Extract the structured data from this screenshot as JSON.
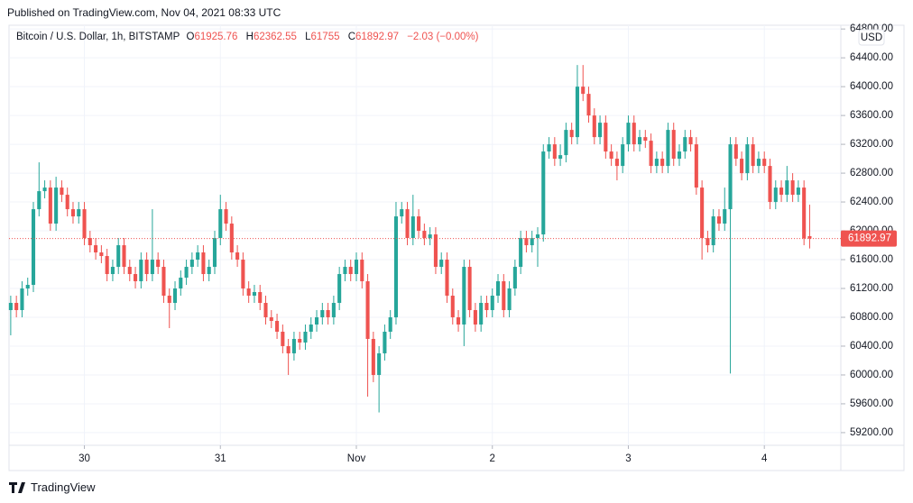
{
  "published": "Published on TradingView.com, Nov 04, 2021 08:33 UTC",
  "brand": "TradingView",
  "chart_data": {
    "type": "candlestick",
    "title": "Bitcoin / U.S. Dollar, 1h, BITSTAMP",
    "legend_labels": [
      "O",
      "H",
      "L",
      "C"
    ],
    "change": "−2.03 (−0.00%)",
    "currency": "USD",
    "up_color": "#26a69a",
    "down_color": "#ef5350",
    "grid": true,
    "xlim": [
      -0.3,
      146.5
    ],
    "xticks": [
      {
        "value": 13,
        "label": "30"
      },
      {
        "value": 37,
        "label": "31"
      },
      {
        "value": 61,
        "label": "Nov"
      },
      {
        "value": 85,
        "label": "2"
      },
      {
        "value": 109,
        "label": "3"
      },
      {
        "value": 133,
        "label": "4"
      }
    ],
    "ylim": [
      59024,
      64852
    ],
    "yticks": [
      {
        "value": 59200,
        "label": "59200.00"
      },
      {
        "value": 59600,
        "label": "59600.00"
      },
      {
        "value": 60000,
        "label": "60000.00"
      },
      {
        "value": 60400,
        "label": "60400.00"
      },
      {
        "value": 60800,
        "label": "60800.00"
      },
      {
        "value": 61200,
        "label": "61200.00"
      },
      {
        "value": 61600,
        "label": "61600.00"
      },
      {
        "value": 62000,
        "label": "62000.00"
      },
      {
        "value": 62400,
        "label": "62400.00"
      },
      {
        "value": 62800,
        "label": "62800.00"
      },
      {
        "value": 63200,
        "label": "63200.00"
      },
      {
        "value": 63600,
        "label": "63600.00"
      },
      {
        "value": 64000,
        "label": "64000.00"
      },
      {
        "value": 64400,
        "label": "64400.00"
      },
      {
        "value": 64800,
        "label": "64800.00"
      }
    ],
    "ohlc": [
      [
        60900,
        61100,
        60550,
        61000
      ],
      [
        61000,
        61100,
        60800,
        60900
      ],
      [
        60900,
        61300,
        60800,
        61200
      ],
      [
        61200,
        61350,
        61100,
        61250
      ],
      [
        61250,
        62400,
        61150,
        62300
      ],
      [
        62300,
        62950,
        62200,
        62550
      ],
      [
        62550,
        62700,
        62450,
        62600
      ],
      [
        62600,
        62700,
        62000,
        62100
      ],
      [
        62100,
        62750,
        62000,
        62600
      ],
      [
        62600,
        62700,
        62400,
        62500
      ],
      [
        62500,
        62600,
        62200,
        62300
      ],
      [
        62300,
        62400,
        62100,
        62200
      ],
      [
        62200,
        62400,
        62100,
        62300
      ],
      [
        62300,
        62400,
        61800,
        61900
      ],
      [
        61900,
        62000,
        61700,
        61800
      ],
      [
        61800,
        61900,
        61600,
        61700
      ],
      [
        61700,
        61800,
        61550,
        61650
      ],
      [
        61650,
        61750,
        61300,
        61400
      ],
      [
        61400,
        61600,
        61300,
        61500
      ],
      [
        61500,
        61900,
        61400,
        61800
      ],
      [
        61800,
        61900,
        61400,
        61500
      ],
      [
        61500,
        61600,
        61300,
        61400
      ],
      [
        61400,
        61500,
        61200,
        61300
      ],
      [
        61300,
        61700,
        61200,
        61600
      ],
      [
        61600,
        61700,
        61300,
        61400
      ],
      [
        61400,
        62300,
        61300,
        61600
      ],
      [
        61600,
        61700,
        61400,
        61500
      ],
      [
        61500,
        61600,
        61000,
        61100
      ],
      [
        61100,
        61200,
        60650,
        61000
      ],
      [
        61000,
        61300,
        60900,
        61200
      ],
      [
        61200,
        61450,
        61100,
        61350
      ],
      [
        61350,
        61600,
        61250,
        61500
      ],
      [
        61500,
        61700,
        61400,
        61600
      ],
      [
        61600,
        61800,
        61500,
        61700
      ],
      [
        61700,
        61800,
        61300,
        61400
      ],
      [
        61400,
        61600,
        61300,
        61500
      ],
      [
        61500,
        62000,
        61400,
        61900
      ],
      [
        61900,
        62500,
        61800,
        62300
      ],
      [
        62300,
        62400,
        62000,
        62100
      ],
      [
        62100,
        62200,
        61600,
        61700
      ],
      [
        61700,
        61800,
        61500,
        61600
      ],
      [
        61600,
        61700,
        61100,
        61200
      ],
      [
        61200,
        61300,
        61000,
        61100
      ],
      [
        61100,
        61250,
        61000,
        61150
      ],
      [
        61150,
        61250,
        60900,
        61000
      ],
      [
        61000,
        61100,
        60700,
        60800
      ],
      [
        60800,
        60900,
        60650,
        60750
      ],
      [
        60750,
        60850,
        60500,
        60600
      ],
      [
        60600,
        60700,
        60300,
        60400
      ],
      [
        60400,
        60500,
        60000,
        60300
      ],
      [
        60300,
        60600,
        60200,
        60500
      ],
      [
        60500,
        60600,
        60350,
        60450
      ],
      [
        60450,
        60700,
        60350,
        60600
      ],
      [
        60600,
        60800,
        60500,
        60700
      ],
      [
        60700,
        60900,
        60600,
        60800
      ],
      [
        60800,
        61000,
        60700,
        60900
      ],
      [
        60900,
        61000,
        60700,
        60800
      ],
      [
        60800,
        61100,
        60700,
        61000
      ],
      [
        61000,
        61500,
        60900,
        61400
      ],
      [
        61400,
        61600,
        61300,
        61500
      ],
      [
        61500,
        61600,
        61300,
        61400
      ],
      [
        61400,
        61700,
        61300,
        61600
      ],
      [
        61600,
        61700,
        61200,
        61300
      ],
      [
        61300,
        61400,
        59700,
        60500
      ],
      [
        60500,
        60600,
        59900,
        60000
      ],
      [
        60000,
        60400,
        59480,
        60300
      ],
      [
        60300,
        60700,
        60200,
        60600
      ],
      [
        60600,
        60900,
        60500,
        60800
      ],
      [
        60800,
        62400,
        60700,
        62200
      ],
      [
        62200,
        62400,
        62100,
        62300
      ],
      [
        62300,
        62400,
        61800,
        61900
      ],
      [
        61900,
        62500,
        61800,
        62200
      ],
      [
        62200,
        62300,
        61900,
        62000
      ],
      [
        62000,
        62100,
        61800,
        61900
      ],
      [
        61900,
        62050,
        61800,
        61950
      ],
      [
        61950,
        62050,
        61400,
        61500
      ],
      [
        61500,
        61700,
        61400,
        61600
      ],
      [
        61600,
        61700,
        61000,
        61100
      ],
      [
        61100,
        61200,
        60700,
        60800
      ],
      [
        60800,
        60900,
        60600,
        60700
      ],
      [
        60700,
        61600,
        60400,
        61500
      ],
      [
        61500,
        61600,
        60800,
        60900
      ],
      [
        60900,
        61000,
        60600,
        60700
      ],
      [
        60700,
        61100,
        60600,
        61000
      ],
      [
        61000,
        61100,
        60800,
        60900
      ],
      [
        60900,
        61200,
        60800,
        61100
      ],
      [
        61100,
        61400,
        61000,
        61300
      ],
      [
        61300,
        61400,
        60800,
        60900
      ],
      [
        60900,
        61300,
        60800,
        61200
      ],
      [
        61200,
        61600,
        61100,
        61500
      ],
      [
        61500,
        62000,
        61400,
        61900
      ],
      [
        61900,
        62000,
        61700,
        61800
      ],
      [
        61800,
        62000,
        61700,
        61900
      ],
      [
        61900,
        62050,
        61500,
        61950
      ],
      [
        61950,
        63200,
        61850,
        63100
      ],
      [
        63100,
        63300,
        63000,
        63200
      ],
      [
        63200,
        63300,
        62900,
        63000
      ],
      [
        63000,
        63200,
        62900,
        63050
      ],
      [
        63050,
        63500,
        62950,
        63400
      ],
      [
        63400,
        63500,
        63200,
        63300
      ],
      [
        63300,
        64300,
        63200,
        64000
      ],
      [
        64000,
        64300,
        63800,
        63900
      ],
      [
        63900,
        64000,
        63500,
        63600
      ],
      [
        63600,
        63700,
        63200,
        63300
      ],
      [
        63300,
        63600,
        63200,
        63500
      ],
      [
        63500,
        63600,
        63000,
        63100
      ],
      [
        63100,
        63200,
        62900,
        63000
      ],
      [
        63000,
        63100,
        62700,
        62900
      ],
      [
        62900,
        63300,
        62800,
        63200
      ],
      [
        63200,
        63600,
        63100,
        63500
      ],
      [
        63500,
        63600,
        63100,
        63200
      ],
      [
        63200,
        63400,
        63100,
        63300
      ],
      [
        63300,
        63400,
        63150,
        63250
      ],
      [
        63250,
        63350,
        62800,
        62900
      ],
      [
        62900,
        63100,
        62800,
        63000
      ],
      [
        63000,
        63100,
        62800,
        62900
      ],
      [
        62900,
        63500,
        62800,
        63400
      ],
      [
        63400,
        63500,
        62900,
        63000
      ],
      [
        63000,
        63200,
        62900,
        63100
      ],
      [
        63100,
        63400,
        63000,
        63300
      ],
      [
        63300,
        63400,
        63100,
        63200
      ],
      [
        63200,
        63300,
        62500,
        62600
      ],
      [
        62600,
        62700,
        61600,
        61900
      ],
      [
        61900,
        62000,
        61700,
        61800
      ],
      [
        61800,
        62300,
        61700,
        62200
      ],
      [
        62200,
        62300,
        62000,
        62100
      ],
      [
        62100,
        62600,
        62000,
        62300
      ],
      [
        62300,
        63300,
        60020,
        63200
      ],
      [
        63200,
        63300,
        62900,
        63000
      ],
      [
        63000,
        63100,
        62700,
        62800
      ],
      [
        62800,
        63300,
        62700,
        63200
      ],
      [
        63200,
        63300,
        62800,
        62900
      ],
      [
        62900,
        63100,
        62800,
        63000
      ],
      [
        63000,
        63100,
        62800,
        62900
      ],
      [
        62900,
        63000,
        62300,
        62400
      ],
      [
        62400,
        62700,
        62300,
        62600
      ],
      [
        62600,
        62700,
        62400,
        62500
      ],
      [
        62500,
        62900,
        62400,
        62700
      ],
      [
        62700,
        62800,
        62400,
        62500
      ],
      [
        62500,
        62700,
        62400,
        62600
      ],
      [
        62600,
        62700,
        61800,
        61895
      ],
      [
        61925.76,
        62362.55,
        61755,
        61892.97
      ]
    ]
  }
}
